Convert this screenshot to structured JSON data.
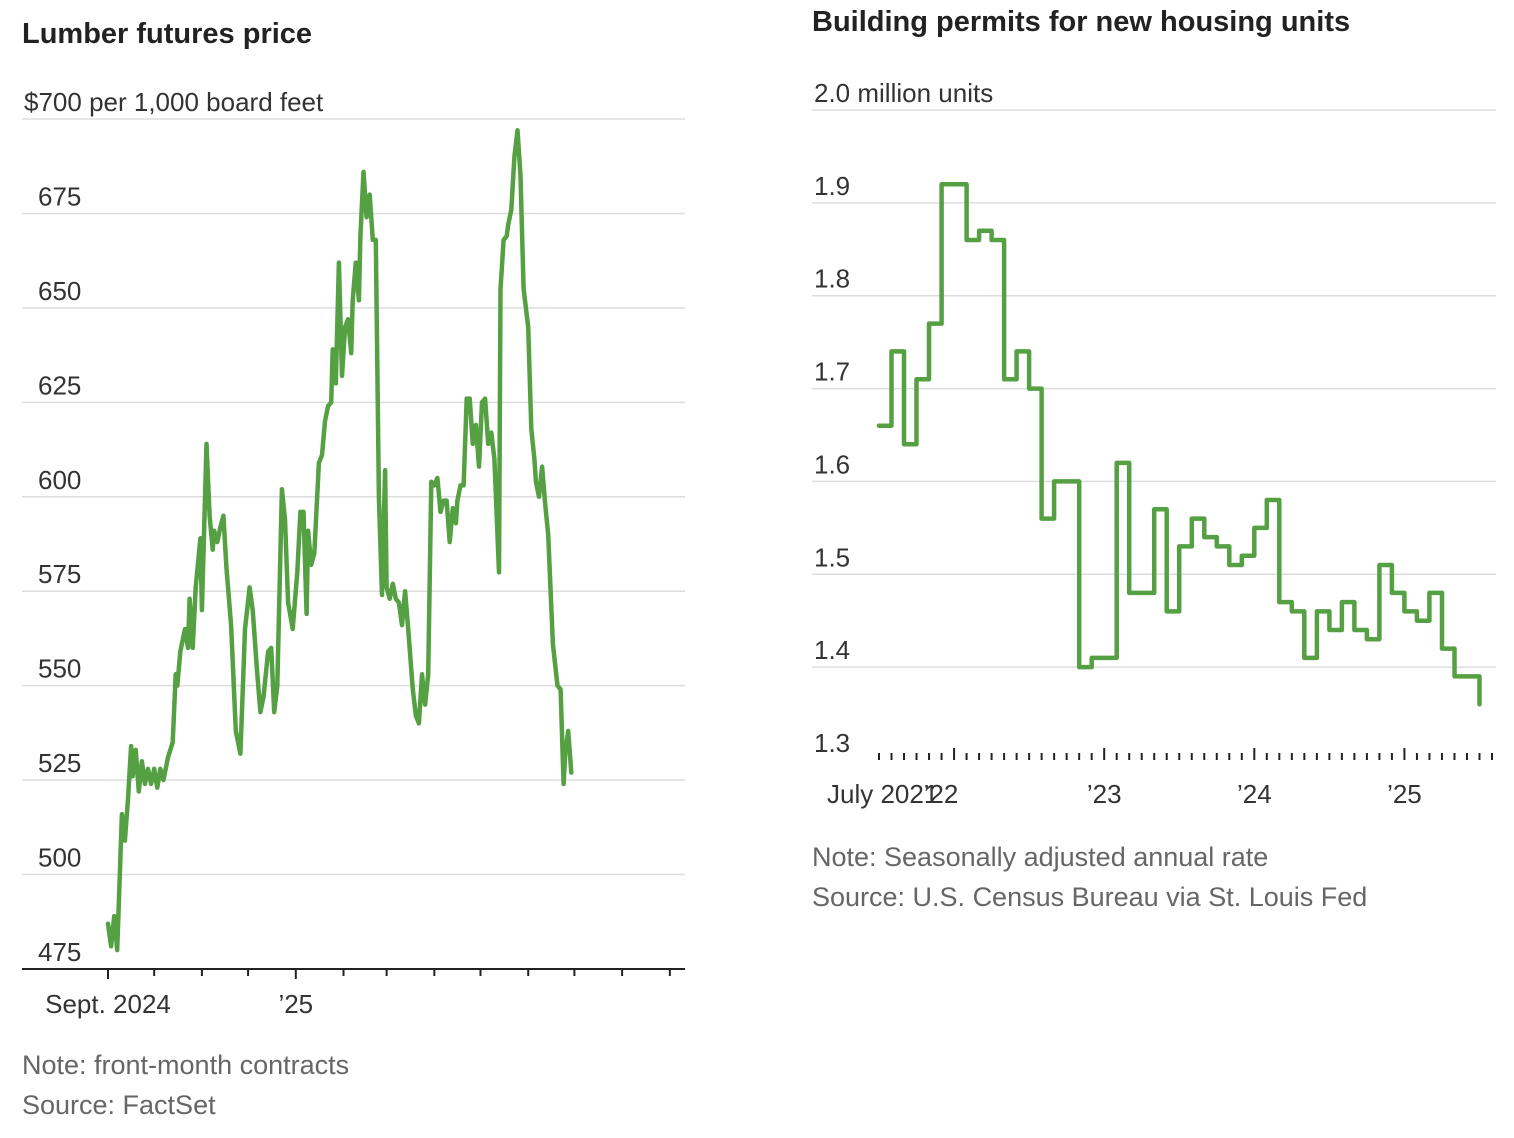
{
  "theme": {
    "line_color": "#54a042",
    "grid_color": "#dddddd",
    "text_color": "#333333",
    "note_color": "#666666"
  },
  "left": {
    "title": "Lumber futures price",
    "note": "Note: front-month contracts",
    "source": "Source: FactSet",
    "chart_data": {
      "type": "line",
      "title": "Lumber futures price",
      "ylabel": "$700 per 1,000 board feet",
      "ylim": [
        475,
        700
      ],
      "yticks": [
        {
          "value": 700,
          "label": "$700 per 1,000 board feet"
        },
        {
          "value": 675,
          "label": "675"
        },
        {
          "value": 650,
          "label": "650"
        },
        {
          "value": 625,
          "label": "625"
        },
        {
          "value": 600,
          "label": "600"
        },
        {
          "value": 575,
          "label": "575"
        },
        {
          "value": 550,
          "label": "550"
        },
        {
          "value": 525,
          "label": "525"
        },
        {
          "value": 500,
          "label": "500"
        },
        {
          "value": 475,
          "label": "475"
        }
      ],
      "xlim": [
        "2024-09-01",
        "2025-09-05"
      ],
      "xtick_dates": [
        "2024-09-01",
        "2024-10-01",
        "2024-11-01",
        "2024-12-01",
        "2025-01-01",
        "2025-02-01",
        "2025-03-01",
        "2025-04-01",
        "2025-05-01",
        "2025-06-01",
        "2025-07-01",
        "2025-08-01",
        "2025-09-01"
      ],
      "xtick_labels": [
        {
          "date": "2024-09-01",
          "label": "Sept. 2024"
        },
        {
          "date": "2025-01-01",
          "label": "’25"
        }
      ],
      "series": [
        {
          "points": [
            [
              "2024-09-01",
              487
            ],
            [
              "2024-09-03",
              481
            ],
            [
              "2024-09-05",
              489
            ],
            [
              "2024-09-07",
              480
            ],
            [
              "2024-09-10",
              516
            ],
            [
              "2024-09-12",
              509
            ],
            [
              "2024-09-14",
              520
            ],
            [
              "2024-09-16",
              534
            ],
            [
              "2024-09-17",
              526
            ],
            [
              "2024-09-19",
              533
            ],
            [
              "2024-09-21",
              522
            ],
            [
              "2024-09-23",
              530
            ],
            [
              "2024-09-25",
              524
            ],
            [
              "2024-09-27",
              528
            ],
            [
              "2024-09-29",
              524
            ],
            [
              "2024-10-01",
              528
            ],
            [
              "2024-10-03",
              523
            ],
            [
              "2024-10-05",
              528
            ],
            [
              "2024-10-07",
              525
            ],
            [
              "2024-10-10",
              531
            ],
            [
              "2024-10-13",
              535
            ],
            [
              "2024-10-15",
              553
            ],
            [
              "2024-10-16",
              550
            ],
            [
              "2024-10-18",
              559
            ],
            [
              "2024-10-21",
              565
            ],
            [
              "2024-10-23",
              560
            ],
            [
              "2024-10-24",
              573
            ],
            [
              "2024-10-26",
              560
            ],
            [
              "2024-10-28",
              576
            ],
            [
              "2024-10-31",
              589
            ],
            [
              "2024-11-01",
              570
            ],
            [
              "2024-11-04",
              614
            ],
            [
              "2024-11-06",
              595
            ],
            [
              "2024-11-08",
              586
            ],
            [
              "2024-11-09",
              591
            ],
            [
              "2024-11-11",
              588
            ],
            [
              "2024-11-13",
              592
            ],
            [
              "2024-11-15",
              595
            ],
            [
              "2024-11-17",
              581
            ],
            [
              "2024-11-20",
              566
            ],
            [
              "2024-11-23",
              538
            ],
            [
              "2024-11-26",
              532
            ],
            [
              "2024-11-29",
              565
            ],
            [
              "2024-12-02",
              576
            ],
            [
              "2024-12-04",
              570
            ],
            [
              "2024-12-07",
              553
            ],
            [
              "2024-12-09",
              543
            ],
            [
              "2024-12-11",
              547
            ],
            [
              "2024-12-14",
              559
            ],
            [
              "2024-12-16",
              560
            ],
            [
              "2024-12-18",
              543
            ],
            [
              "2024-12-20",
              550
            ],
            [
              "2024-12-23",
              602
            ],
            [
              "2024-12-25",
              594
            ],
            [
              "2024-12-27",
              572
            ],
            [
              "2024-12-30",
              565
            ],
            [
              "2025-01-02",
              580
            ],
            [
              "2025-01-04",
              596
            ],
            [
              "2025-01-06",
              596
            ],
            [
              "2025-01-08",
              569
            ],
            [
              "2025-01-09",
              591
            ],
            [
              "2025-01-11",
              582
            ],
            [
              "2025-01-13",
              585
            ],
            [
              "2025-01-16",
              609
            ],
            [
              "2025-01-18",
              611
            ],
            [
              "2025-01-20",
              620
            ],
            [
              "2025-01-22",
              624
            ],
            [
              "2025-01-24",
              625
            ],
            [
              "2025-01-25",
              639
            ],
            [
              "2025-01-27",
              630
            ],
            [
              "2025-01-29",
              662
            ],
            [
              "2025-01-31",
              632
            ],
            [
              "2025-02-02",
              645
            ],
            [
              "2025-02-04",
              647
            ],
            [
              "2025-02-06",
              638
            ],
            [
              "2025-02-07",
              652
            ],
            [
              "2025-02-09",
              662
            ],
            [
              "2025-02-11",
              652
            ],
            [
              "2025-02-12",
              669
            ],
            [
              "2025-02-14",
              686
            ],
            [
              "2025-02-16",
              674
            ],
            [
              "2025-02-18",
              680
            ],
            [
              "2025-02-20",
              668
            ],
            [
              "2025-02-22",
              668
            ],
            [
              "2025-02-24",
              600
            ],
            [
              "2025-02-26",
              574
            ],
            [
              "2025-02-28",
              607
            ],
            [
              "2025-03-01",
              576
            ],
            [
              "2025-03-03",
              573
            ],
            [
              "2025-03-05",
              577
            ],
            [
              "2025-03-07",
              573
            ],
            [
              "2025-03-09",
              572
            ],
            [
              "2025-03-11",
              566
            ],
            [
              "2025-03-13",
              575
            ],
            [
              "2025-03-15",
              565
            ],
            [
              "2025-03-18",
              549
            ],
            [
              "2025-03-20",
              542
            ],
            [
              "2025-03-22",
              540
            ],
            [
              "2025-03-24",
              553
            ],
            [
              "2025-03-26",
              545
            ],
            [
              "2025-03-28",
              553
            ],
            [
              "2025-03-30",
              604
            ],
            [
              "2025-04-01",
              603
            ],
            [
              "2025-04-03",
              605
            ],
            [
              "2025-04-05",
              596
            ],
            [
              "2025-04-07",
              599
            ],
            [
              "2025-04-09",
              599
            ],
            [
              "2025-04-11",
              588
            ],
            [
              "2025-04-13",
              597
            ],
            [
              "2025-04-15",
              593
            ],
            [
              "2025-04-16",
              599
            ],
            [
              "2025-04-18",
              603
            ],
            [
              "2025-04-20",
              603
            ],
            [
              "2025-04-22",
              626
            ],
            [
              "2025-04-24",
              626
            ],
            [
              "2025-04-26",
              614
            ],
            [
              "2025-04-28",
              619
            ],
            [
              "2025-04-30",
              608
            ],
            [
              "2025-05-02",
              625
            ],
            [
              "2025-05-04",
              626
            ],
            [
              "2025-05-06",
              614
            ],
            [
              "2025-05-08",
              617
            ],
            [
              "2025-05-10",
              610
            ],
            [
              "2025-05-13",
              580
            ],
            [
              "2025-05-14",
              655
            ],
            [
              "2025-05-16",
              668
            ],
            [
              "2025-05-18",
              669
            ],
            [
              "2025-05-19",
              672
            ],
            [
              "2025-05-21",
              676
            ],
            [
              "2025-05-23",
              690
            ],
            [
              "2025-05-25",
              697
            ],
            [
              "2025-05-27",
              685
            ],
            [
              "2025-05-29",
              655
            ],
            [
              "2025-06-01",
              645
            ],
            [
              "2025-06-03",
              618
            ],
            [
              "2025-06-05",
              610
            ],
            [
              "2025-06-06",
              604
            ],
            [
              "2025-06-08",
              600
            ],
            [
              "2025-06-10",
              608
            ],
            [
              "2025-06-12",
              598
            ],
            [
              "2025-06-14",
              590
            ],
            [
              "2025-06-17",
              561
            ],
            [
              "2025-06-20",
              550
            ],
            [
              "2025-06-22",
              549
            ],
            [
              "2025-06-24",
              524
            ],
            [
              "2025-06-25",
              532
            ],
            [
              "2025-06-27",
              538
            ],
            [
              "2025-06-29",
              527
            ]
          ]
        }
      ]
    }
  },
  "right": {
    "title": "Building permits for new housing units",
    "note": "Note: Seasonally adjusted annual rate",
    "source": "Source: U.S. Census Bureau via St. Louis Fed",
    "chart_data": {
      "type": "line",
      "step": true,
      "title": "Building permits for new housing units",
      "ylabel": "2.0 million units",
      "ylim": [
        1.3,
        2.0
      ],
      "yticks": [
        {
          "value": 2.0,
          "label": "2.0 million units"
        },
        {
          "value": 1.9,
          "label": "1.9"
        },
        {
          "value": 1.8,
          "label": "1.8"
        },
        {
          "value": 1.7,
          "label": "1.7"
        },
        {
          "value": 1.6,
          "label": "1.6"
        },
        {
          "value": 1.5,
          "label": "1.5"
        },
        {
          "value": 1.4,
          "label": "1.4"
        },
        {
          "value": 1.3,
          "label": "1.3"
        }
      ],
      "xlim": [
        "2021-07",
        "2025-08"
      ],
      "xtick_labels": [
        {
          "month": "2021-07",
          "label": "July 2021"
        },
        {
          "month": "2022-01",
          "label": "’22"
        },
        {
          "month": "2023-01",
          "label": "’23"
        },
        {
          "month": "2024-01",
          "label": "’24"
        },
        {
          "month": "2025-01",
          "label": "’25"
        }
      ],
      "series": [
        {
          "months": [
            "2021-07",
            "2021-08",
            "2021-09",
            "2021-10",
            "2021-11",
            "2021-12",
            "2022-01",
            "2022-02",
            "2022-03",
            "2022-04",
            "2022-05",
            "2022-06",
            "2022-07",
            "2022-08",
            "2022-09",
            "2022-10",
            "2022-11",
            "2022-12",
            "2023-01",
            "2023-02",
            "2023-03",
            "2023-04",
            "2023-05",
            "2023-06",
            "2023-07",
            "2023-08",
            "2023-09",
            "2023-10",
            "2023-11",
            "2023-12",
            "2024-01",
            "2024-02",
            "2024-03",
            "2024-04",
            "2024-05",
            "2024-06",
            "2024-07",
            "2024-08",
            "2024-09",
            "2024-10",
            "2024-11",
            "2024-12",
            "2025-01",
            "2025-02",
            "2025-03",
            "2025-04",
            "2025-05",
            "2025-06",
            "2025-07"
          ],
          "values": [
            1.66,
            1.74,
            1.64,
            1.71,
            1.77,
            1.92,
            1.92,
            1.86,
            1.87,
            1.86,
            1.71,
            1.74,
            1.7,
            1.56,
            1.6,
            1.6,
            1.4,
            1.41,
            1.41,
            1.62,
            1.48,
            1.48,
            1.57,
            1.46,
            1.53,
            1.56,
            1.54,
            1.53,
            1.51,
            1.52,
            1.55,
            1.58,
            1.47,
            1.46,
            1.41,
            1.46,
            1.44,
            1.47,
            1.44,
            1.43,
            1.51,
            1.48,
            1.46,
            1.45,
            1.48,
            1.42,
            1.39,
            1.39,
            1.36
          ]
        }
      ]
    }
  }
}
